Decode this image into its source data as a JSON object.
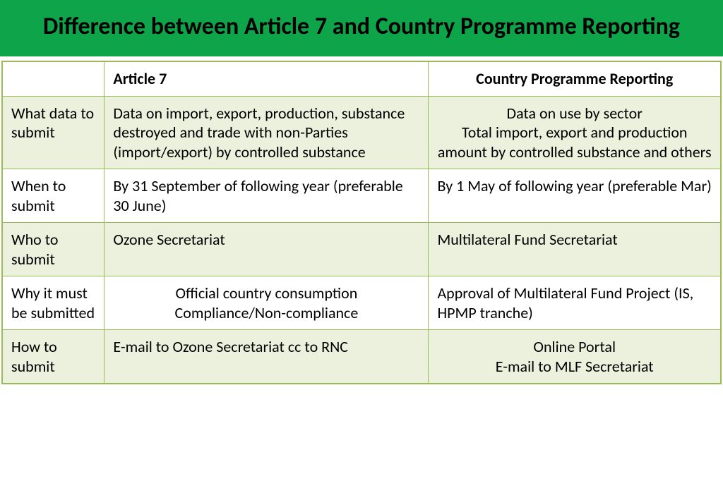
{
  "title": "Difference between Article 7 and Country Programme Reporting",
  "table": {
    "columns": [
      "",
      "Article 7",
      "Country Programme Reporting"
    ],
    "rows": [
      {
        "label": "What data to submit",
        "art7": "Data on import, export, production, substance destroyed and trade with non-Parties (import/export) by controlled substance",
        "cpr": "Data on use by sector\nTotal import, export and production amount by controlled substance and others",
        "tint": true,
        "art7_align": "left",
        "cpr_align": "center",
        "tall": true
      },
      {
        "label": "When to submit",
        "art7": "By 31 September of following year (preferable 30 June)",
        "cpr": "By 1 May of following year (preferable Mar)",
        "tint": false,
        "art7_align": "left",
        "cpr_align": "left",
        "tall": true
      },
      {
        "label": "Who to submit",
        "art7": "Ozone Secretariat",
        "cpr": "Multilateral Fund Secretariat",
        "tint": true,
        "art7_align": "left",
        "cpr_align": "left",
        "tall": false
      },
      {
        "label": "Why it must be submitted",
        "art7": "Official country consumption\nCompliance/Non-compliance",
        "cpr": "Approval of Multilateral Fund Project (IS, HPMP tranche)",
        "tint": false,
        "art7_align": "center",
        "cpr_align": "left",
        "tall": true
      },
      {
        "label": "How to submit",
        "art7": "E-mail to Ozone Secretariat cc to RNC",
        "cpr": "Online Portal\nE-mail to MLF Secretariat",
        "tint": true,
        "art7_align": "left",
        "cpr_align": "center",
        "tall": false
      }
    ]
  },
  "colors": {
    "title_bg": "#0ea44a",
    "border": "#9bbb59",
    "tint_bg": "#ebf1dd",
    "plain_bg": "#ffffff",
    "text": "#000000"
  }
}
